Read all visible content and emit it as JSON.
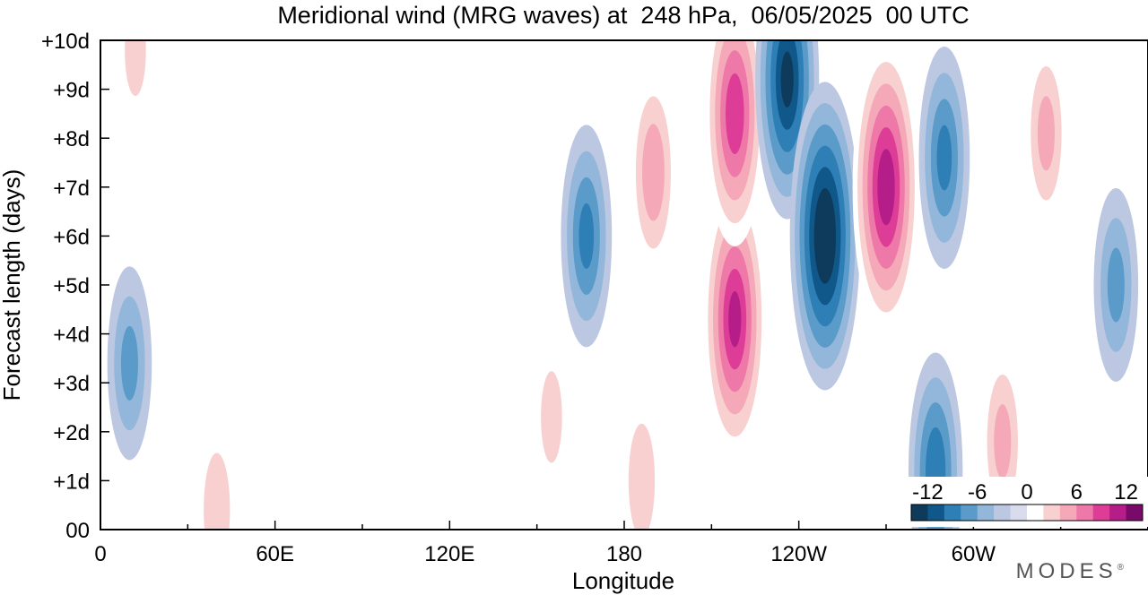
{
  "chart_data": {
    "type": "heatmap",
    "title": "Meridional wind (MRG waves) at  248 hPa,  06/05/2025  00 UTC",
    "xlabel": "Longitude",
    "ylabel": "Forecast length (days)",
    "x_ticks": [
      "0",
      "60E",
      "120E",
      "180",
      "120W",
      "60W"
    ],
    "x_tick_values": [
      0,
      60,
      120,
      180,
      240,
      300
    ],
    "xlim": [
      0,
      360
    ],
    "y_ticks": [
      "00",
      "+1d",
      "+2d",
      "+3d",
      "+4d",
      "+5d",
      "+6d",
      "+7d",
      "+8d",
      "+9d",
      "+10d"
    ],
    "ylim": [
      0,
      10
    ],
    "colorbar": {
      "ticks": [
        "-12",
        "-6",
        "0",
        "6",
        "12"
      ],
      "tick_values": [
        -12,
        -6,
        0,
        6,
        12
      ],
      "levels": [
        -14,
        -12,
        -10,
        -8,
        -6,
        -4,
        -2,
        2,
        4,
        6,
        8,
        10,
        12,
        14
      ],
      "colors": [
        "#0e3a5c",
        "#11588a",
        "#2e7fb6",
        "#5b9bc9",
        "#93b7da",
        "#bcc8e2",
        "#d9dcec",
        "#ffffff",
        "#f8d0d0",
        "#f4a8b8",
        "#ee78a8",
        "#dd3d97",
        "#b51d88",
        "#7a0a6a"
      ],
      "placement": "bottom-right"
    },
    "features": [
      {
        "lon": 10,
        "day": 3.4,
        "value": -6
      },
      {
        "lon": 40,
        "day": 0.4,
        "value": 5
      },
      {
        "lon": 12,
        "day": 9.8,
        "value": 4
      },
      {
        "lon": 155,
        "day": 2.3,
        "value": 4
      },
      {
        "lon": 167,
        "day": 6.0,
        "value": -8
      },
      {
        "lon": 190,
        "day": 7.3,
        "value": 7
      },
      {
        "lon": 186,
        "day": 1.0,
        "value": 5
      },
      {
        "lon": 218,
        "day": 4.3,
        "value": 12
      },
      {
        "lon": 218,
        "day": 8.5,
        "value": 11
      },
      {
        "lon": 236,
        "day": 9.2,
        "value": -12
      },
      {
        "lon": 249,
        "day": 6.0,
        "value": -14
      },
      {
        "lon": 270,
        "day": 7.0,
        "value": 13
      },
      {
        "lon": 290,
        "day": 7.6,
        "value": -8
      },
      {
        "lon": 287,
        "day": 1.2,
        "value": -9
      },
      {
        "lon": 310,
        "day": 1.8,
        "value": 6
      },
      {
        "lon": 325,
        "day": 8.1,
        "value": 6
      },
      {
        "lon": 349,
        "day": 5.0,
        "value": -6
      }
    ]
  },
  "brand": "MODES",
  "brand_mark": "®"
}
